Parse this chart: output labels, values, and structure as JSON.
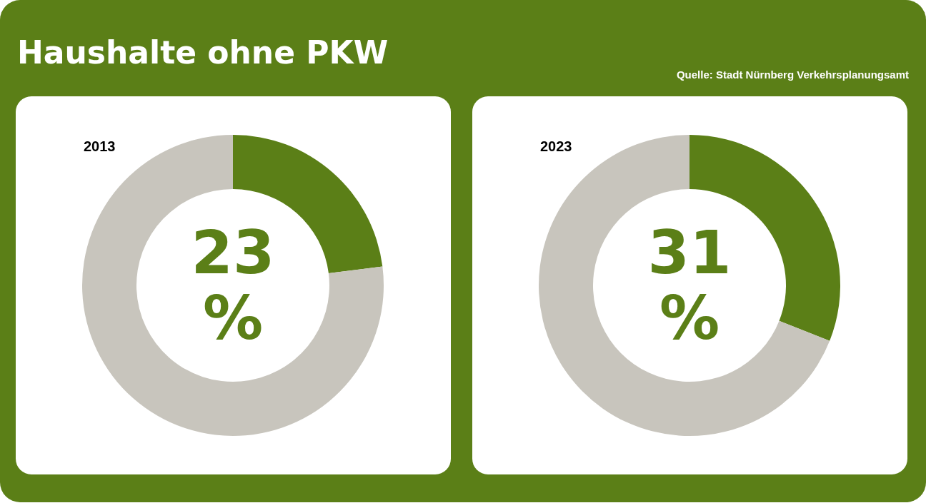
{
  "chart_data": [
    {
      "type": "other",
      "title": "Haushalte ohne PKW",
      "annotations": [
        "Quelle: Stadt Nürnberg Verkehrsplanungsamt"
      ]
    },
    {
      "type": "donut",
      "title": "2013",
      "categories": [
        null,
        null
      ],
      "values": [
        23,
        77
      ],
      "colors": [
        "#5b7f17",
        "#c8c5bd"
      ],
      "value_labels": [
        "23 %",
        null
      ]
    },
    {
      "type": "donut",
      "title": "2023",
      "categories": [
        null,
        null
      ],
      "values": [
        31,
        69
      ],
      "colors": [
        "#5b7f17",
        "#c8c5bd"
      ],
      "value_labels": [
        "31 %",
        null
      ]
    }
  ]
}
